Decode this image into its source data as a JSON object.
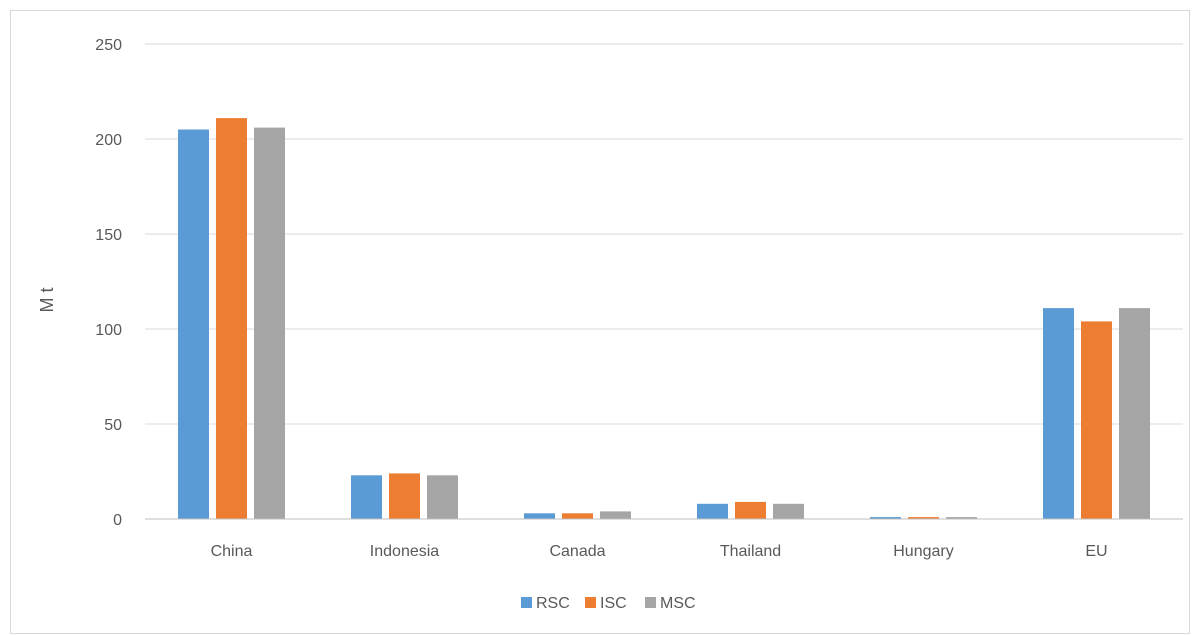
{
  "chart_data": {
    "type": "bar",
    "title": "",
    "xlabel": "",
    "ylabel": "M t",
    "ylim": [
      0,
      250
    ],
    "yticks": [
      0,
      50,
      100,
      150,
      200,
      250
    ],
    "grid": true,
    "legend_position": "bottom",
    "categories": [
      "China",
      "Indonesia",
      "Canada",
      "Thailand",
      "Hungary",
      "EU"
    ],
    "series": [
      {
        "name": "RSC",
        "color": "#5b9bd5",
        "values": [
          205,
          23,
          3,
          8,
          1,
          111
        ]
      },
      {
        "name": "ISC",
        "color": "#ed7d31",
        "values": [
          211,
          24,
          3,
          9,
          1,
          104
        ]
      },
      {
        "name": "MSC",
        "color": "#a5a5a5",
        "values": [
          206,
          23,
          4,
          8,
          1,
          111
        ]
      }
    ]
  }
}
